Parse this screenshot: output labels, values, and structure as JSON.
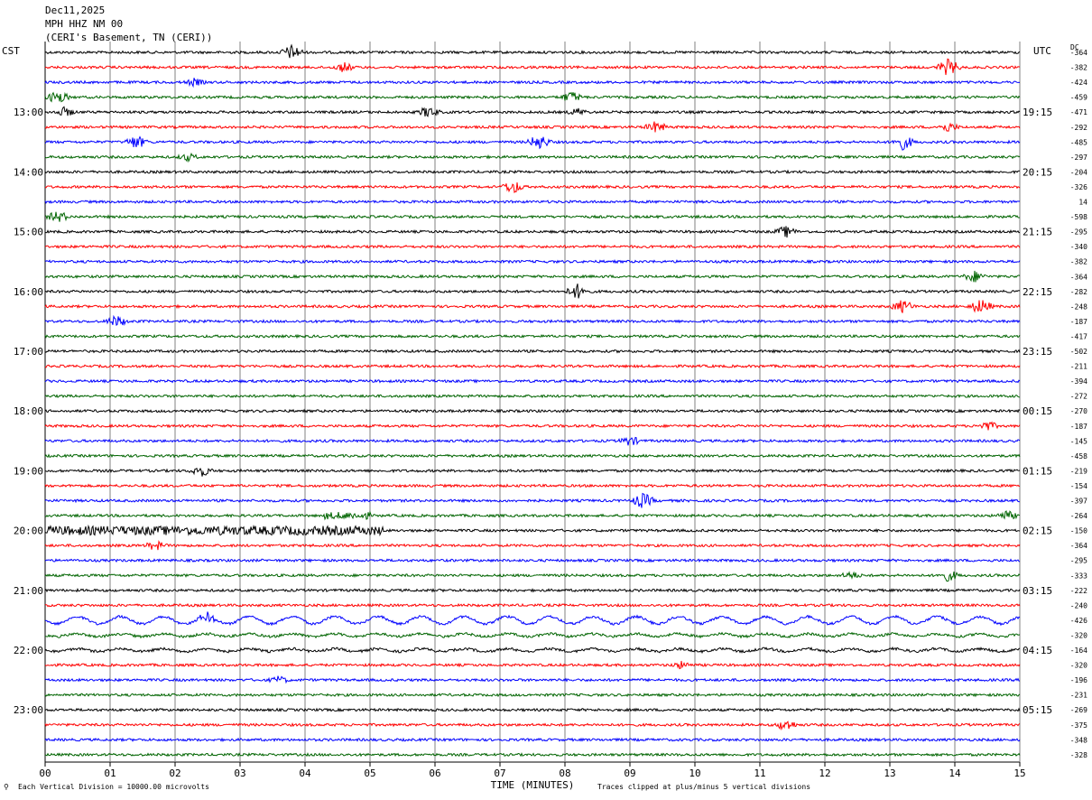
{
  "header": {
    "date": "Dec11,2025",
    "station": "MPH HHZ NM 00",
    "location": "(CERI's Basement, TN (CERI))"
  },
  "left_zone": "CST",
  "right_zone": "UTC",
  "dc_label": "DC",
  "footer": {
    "scale": "Each Vertical Division = 10000.00 microvolts",
    "clip": "Traces clipped at plus/minus 5 vertical divisions",
    "marker": "⚲"
  },
  "colors": {
    "cycle": [
      "#000000",
      "#ff0000",
      "#0000ff",
      "#006400"
    ],
    "grid": "#808080"
  },
  "chart_data": {
    "type": "line",
    "title": "",
    "xlabel": "TIME (MINUTES)",
    "x_ticks": [
      "00",
      "01",
      "02",
      "03",
      "04",
      "05",
      "06",
      "07",
      "08",
      "09",
      "10",
      "11",
      "12",
      "13",
      "14",
      "15"
    ],
    "xlim": [
      0,
      15
    ],
    "trace_minutes": 15,
    "trace_count": 48,
    "left_time_labels": [
      "13:00",
      "14:00",
      "15:00",
      "16:00",
      "17:00",
      "18:00",
      "19:00",
      "20:00",
      "21:00",
      "22:00",
      "23:00"
    ],
    "right_time_labels": [
      "19:15",
      "20:15",
      "21:15",
      "22:15",
      "23:15",
      "00:15",
      "01:15",
      "02:15",
      "03:15",
      "04:15",
      "05:15"
    ],
    "dc_offsets": [
      "-364",
      "-382",
      "-424",
      "-459",
      "-471",
      "-292",
      "-485",
      "-297",
      "-204",
      "-326",
      "14",
      "-598",
      "-295",
      "-340",
      "-382",
      "-364",
      "-282",
      "-248",
      "-187",
      "-417",
      "-502",
      "-211",
      "-394",
      "-272",
      "-270",
      "-187",
      "-145",
      "-458",
      "-219",
      "-154",
      "-397",
      "-264",
      "-150",
      "-364",
      "-295",
      "-333",
      "-222",
      "-240",
      "-426",
      "-320",
      "-164",
      "-320",
      "-196",
      "-231",
      "-269",
      "-375",
      "-348",
      "-328"
    ],
    "events": [
      {
        "trace": 0,
        "minute": 3.8,
        "amp": 9
      },
      {
        "trace": 1,
        "minute": 13.9,
        "amp": 10
      },
      {
        "trace": 1,
        "minute": 4.6,
        "amp": 6
      },
      {
        "trace": 2,
        "minute": 2.3,
        "amp": 5
      },
      {
        "trace": 3,
        "minute": 0.2,
        "amp": 8
      },
      {
        "trace": 3,
        "minute": 8.1,
        "amp": 7
      },
      {
        "trace": 4,
        "minute": 0.3,
        "amp": 6
      },
      {
        "trace": 4,
        "minute": 5.9,
        "amp": 7
      },
      {
        "trace": 4,
        "minute": 8.2,
        "amp": 5
      },
      {
        "trace": 5,
        "minute": 9.4,
        "amp": 7
      },
      {
        "trace": 5,
        "minute": 13.9,
        "amp": 6
      },
      {
        "trace": 6,
        "minute": 1.4,
        "amp": 8
      },
      {
        "trace": 6,
        "minute": 7.6,
        "amp": 9
      },
      {
        "trace": 6,
        "minute": 13.2,
        "amp": 9
      },
      {
        "trace": 7,
        "minute": 2.2,
        "amp": 5
      },
      {
        "trace": 9,
        "minute": 7.2,
        "amp": 8
      },
      {
        "trace": 11,
        "minute": 0.2,
        "amp": 7
      },
      {
        "trace": 12,
        "minute": 11.4,
        "amp": 7
      },
      {
        "trace": 15,
        "minute": 14.3,
        "amp": 7
      },
      {
        "trace": 16,
        "minute": 8.2,
        "amp": 9
      },
      {
        "trace": 17,
        "minute": 13.2,
        "amp": 8
      },
      {
        "trace": 17,
        "minute": 14.4,
        "amp": 9
      },
      {
        "trace": 18,
        "minute": 1.1,
        "amp": 7
      },
      {
        "trace": 25,
        "minute": 14.5,
        "amp": 6
      },
      {
        "trace": 26,
        "minute": 9.0,
        "amp": 6
      },
      {
        "trace": 28,
        "minute": 2.4,
        "amp": 7
      },
      {
        "trace": 30,
        "minute": 9.2,
        "amp": 9
      },
      {
        "trace": 31,
        "minute": 14.8,
        "amp": 6
      },
      {
        "trace": 33,
        "minute": 1.7,
        "amp": 6
      },
      {
        "trace": 35,
        "minute": 13.9,
        "amp": 7
      },
      {
        "trace": 35,
        "minute": 12.4,
        "amp": 5
      },
      {
        "trace": 38,
        "minute": 2.5,
        "amp": 6
      },
      {
        "trace": 41,
        "minute": 9.8,
        "amp": 5
      },
      {
        "trace": 42,
        "minute": 3.6,
        "amp": 5
      },
      {
        "trace": 45,
        "minute": 11.4,
        "amp": 7
      }
    ],
    "noisy_segments": [
      {
        "trace": 32,
        "from_minute": 0.0,
        "to_minute": 5.2,
        "amp": 5
      },
      {
        "trace": 31,
        "from_minute": 4.3,
        "to_minute": 5.0,
        "amp": 4
      }
    ],
    "wavy_traces": [
      {
        "trace": 38,
        "amp": 4
      },
      {
        "trace": 39,
        "amp": 1.5
      },
      {
        "trace": 40,
        "amp": 1.5
      }
    ]
  }
}
